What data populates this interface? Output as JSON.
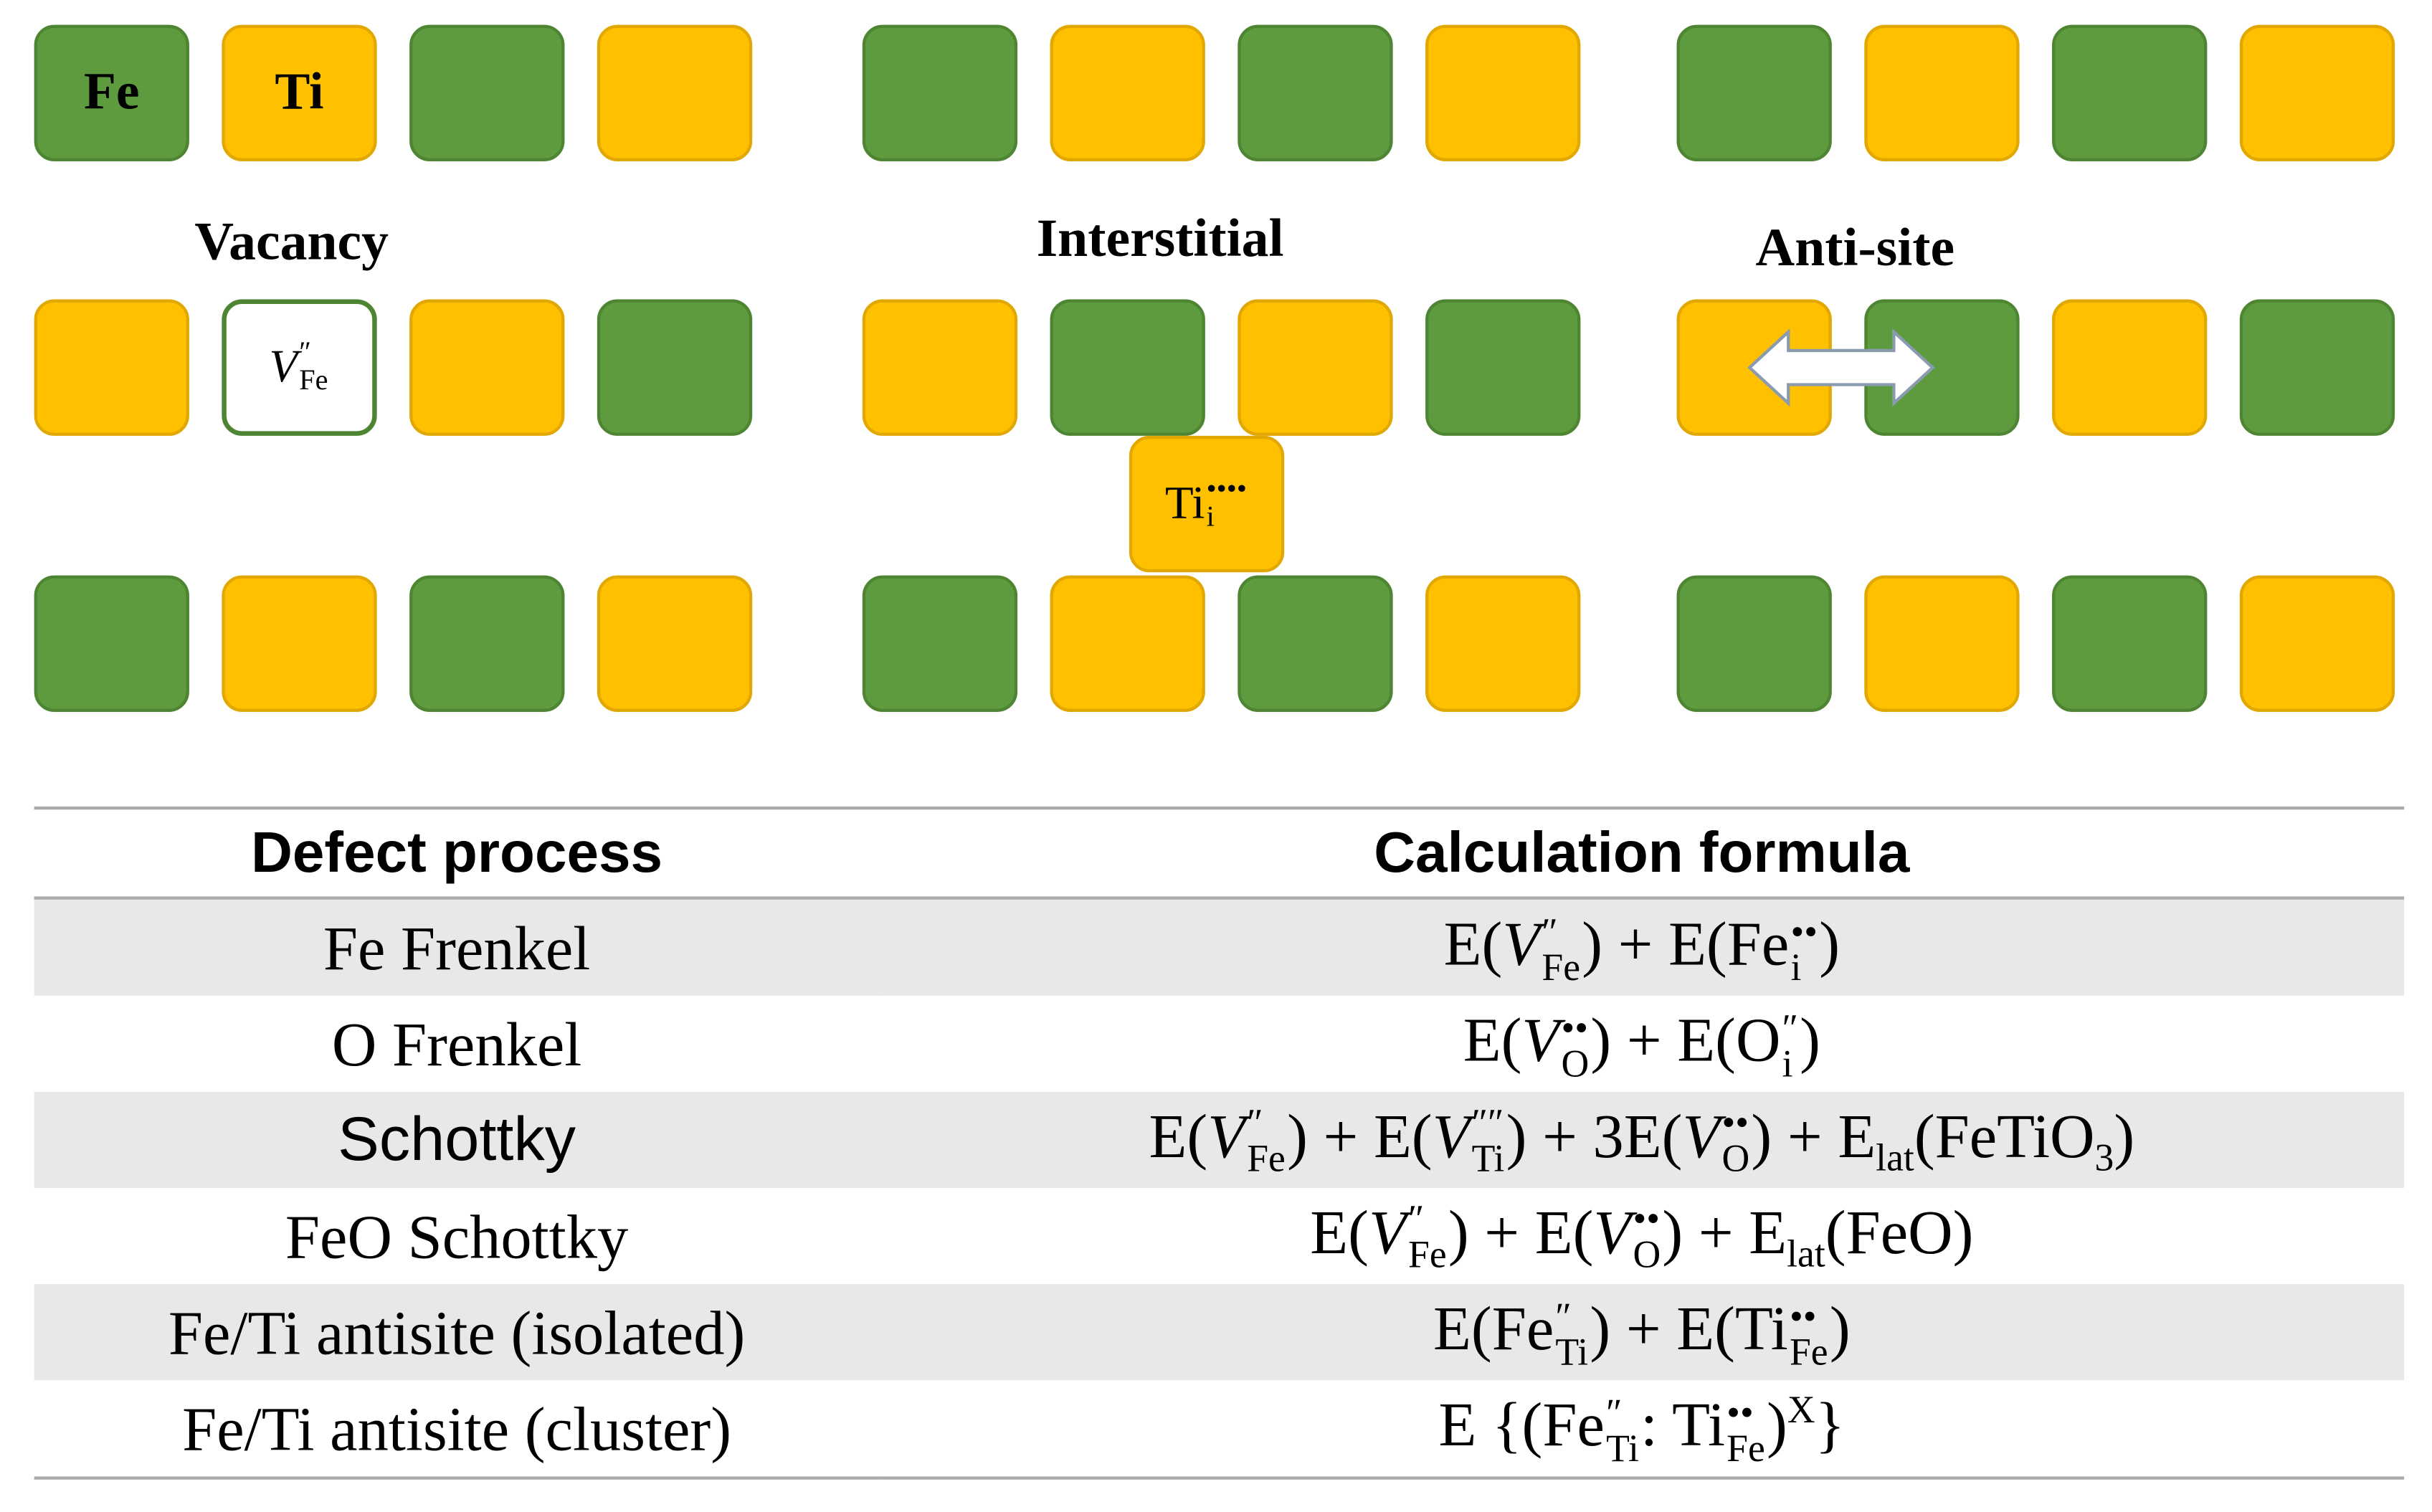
{
  "legend": {
    "fe": "Fe",
    "ti": "Ti"
  },
  "diagram": {
    "vacancy": {
      "label": "Vacancy",
      "symbol": [
        "V",
        "″",
        "Fe"
      ]
    },
    "interstitial": {
      "label": "Interstitial",
      "symbol": [
        "Ti",
        "••••",
        "i"
      ]
    },
    "antisite": {
      "label": "Anti-site"
    }
  },
  "table": {
    "header": [
      "Defect process",
      "Calculation formula"
    ],
    "rows": [
      [
        "Fe Frenkel",
        [
          "E(",
          "V",
          "″",
          "Fe",
          ") +  E(Fe",
          "••",
          "i",
          ")"
        ]
      ],
      [
        "O Frenkel",
        [
          "E(",
          "V",
          "••",
          "O",
          ") +  E(O",
          "″",
          "i",
          ")"
        ]
      ],
      [
        "Schottky",
        [
          "E(",
          "V",
          "″",
          "Fe",
          ") +  E(",
          "V",
          "″″",
          "Ti",
          ") + 3E(",
          "V",
          "••",
          "O",
          ") + E",
          "lat",
          "(FeTiO",
          "3",
          ")"
        ]
      ],
      [
        "FeO Schottky",
        [
          "E(",
          "V",
          "″",
          "Fe",
          ") + E(",
          "V",
          "••",
          "O",
          ") +  E",
          "lat",
          "(FeO)"
        ]
      ],
      [
        "Fe/Ti antisite (isolated)",
        [
          "E(Fe",
          "″",
          "Ti",
          ") + E(Ti",
          "••",
          "Fe",
          ")"
        ]
      ],
      [
        "Fe/Ti antisite  (cluster)",
        [
          "E {(Fe",
          "″",
          "Ti",
          ": Ti",
          "••",
          "Fe",
          ")",
          "X",
          "}"
        ]
      ]
    ]
  }
}
